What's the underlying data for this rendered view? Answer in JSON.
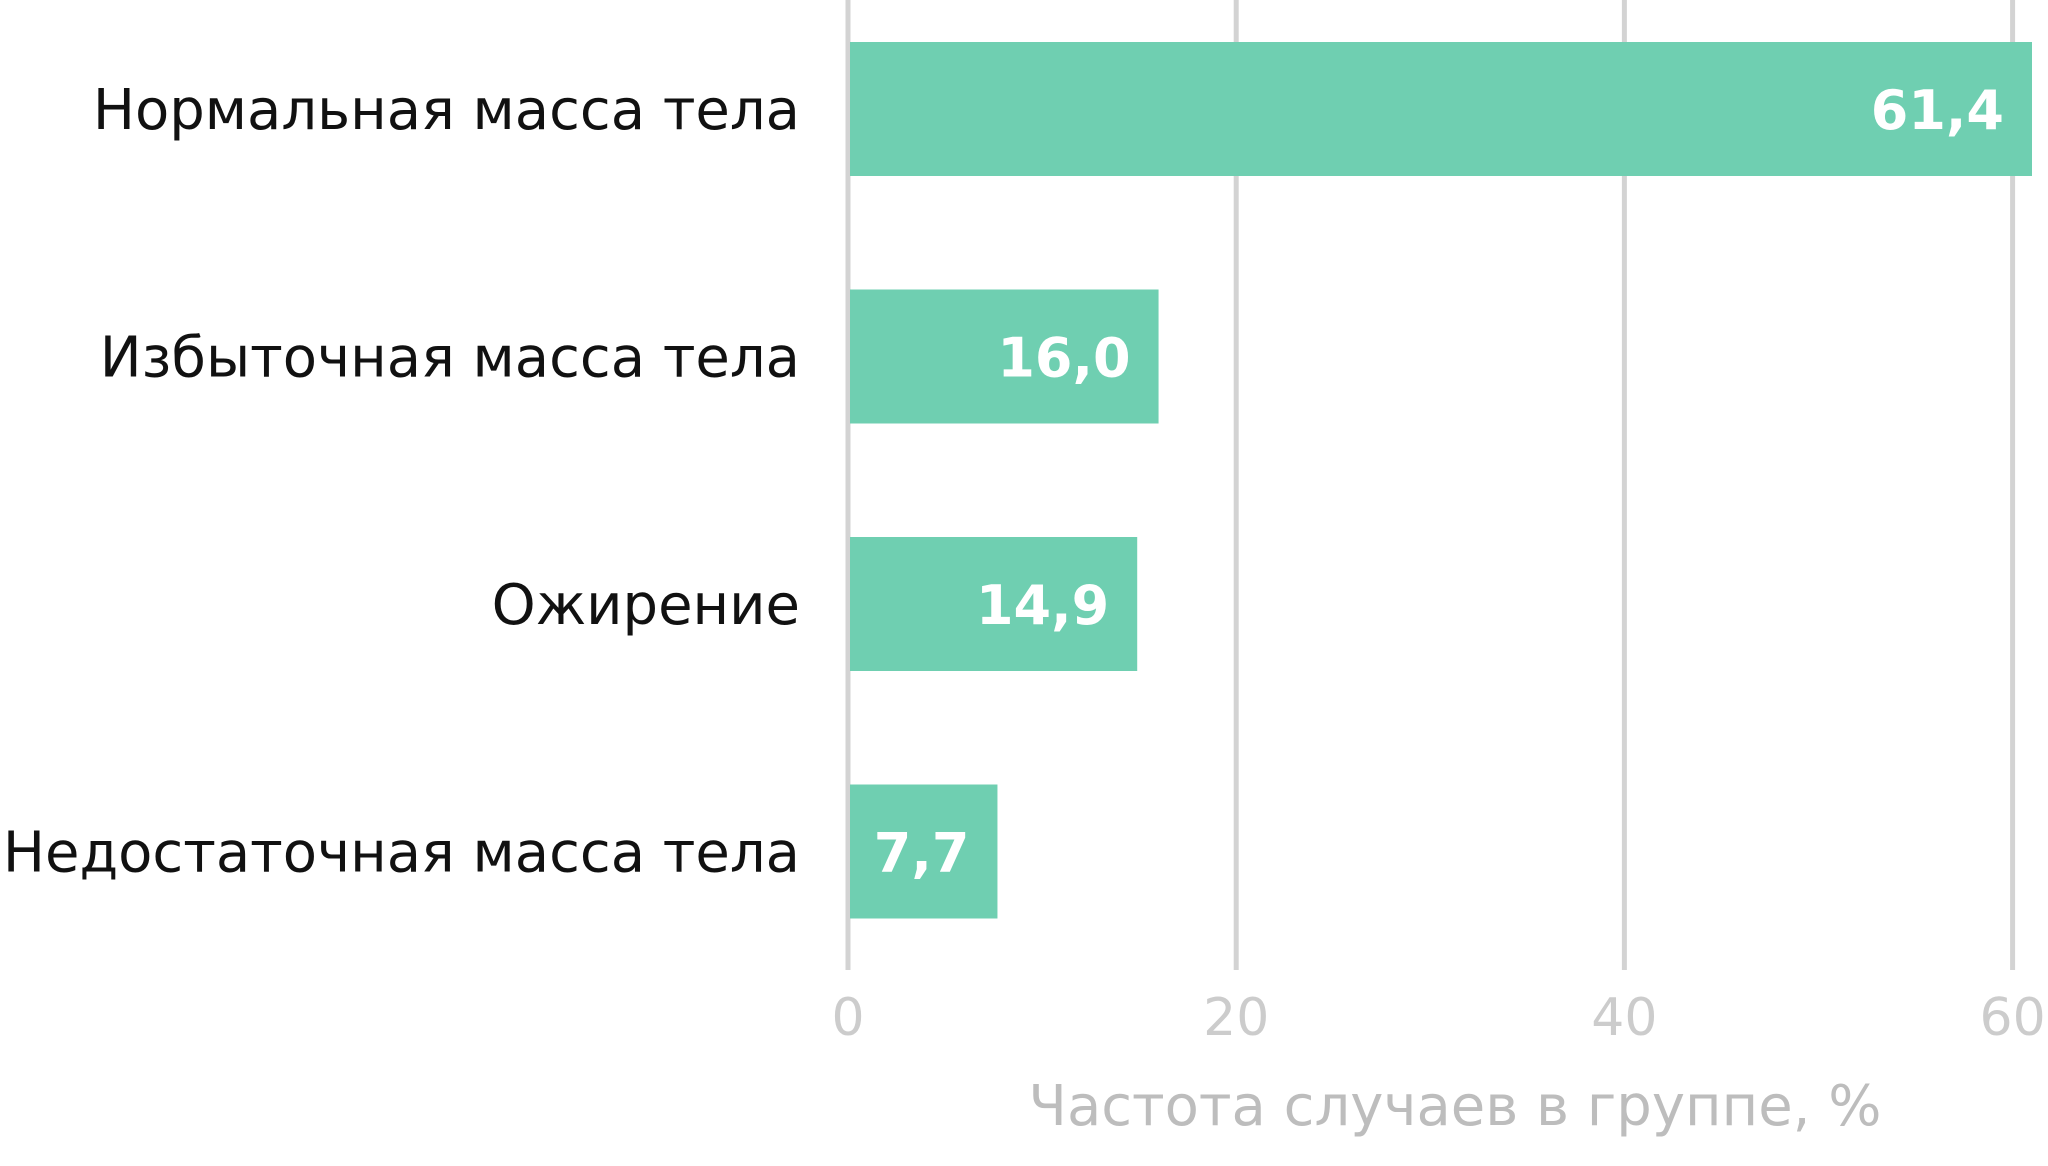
{
  "chart_data": {
    "type": "bar",
    "orientation": "horizontal",
    "categories": [
      "Нормальная масса тела",
      "Избыточная масса тела",
      "Ожирение",
      "Недостаточная масса тела"
    ],
    "values": [
      61.4,
      16.0,
      14.9,
      7.7
    ],
    "value_labels": [
      "61,4",
      "16,0",
      "14,9",
      "7,7"
    ],
    "xlabel": "Частота случаев в группе, %",
    "xlim": [
      0,
      61
    ],
    "xticks": [
      0,
      20,
      40,
      60
    ],
    "xtick_labels": [
      "0",
      "20",
      "40",
      "60"
    ],
    "grid": true,
    "bar_color": "#6fcfb1",
    "grid_color": "#d3d3d3",
    "tick_color": "#cccccc"
  }
}
